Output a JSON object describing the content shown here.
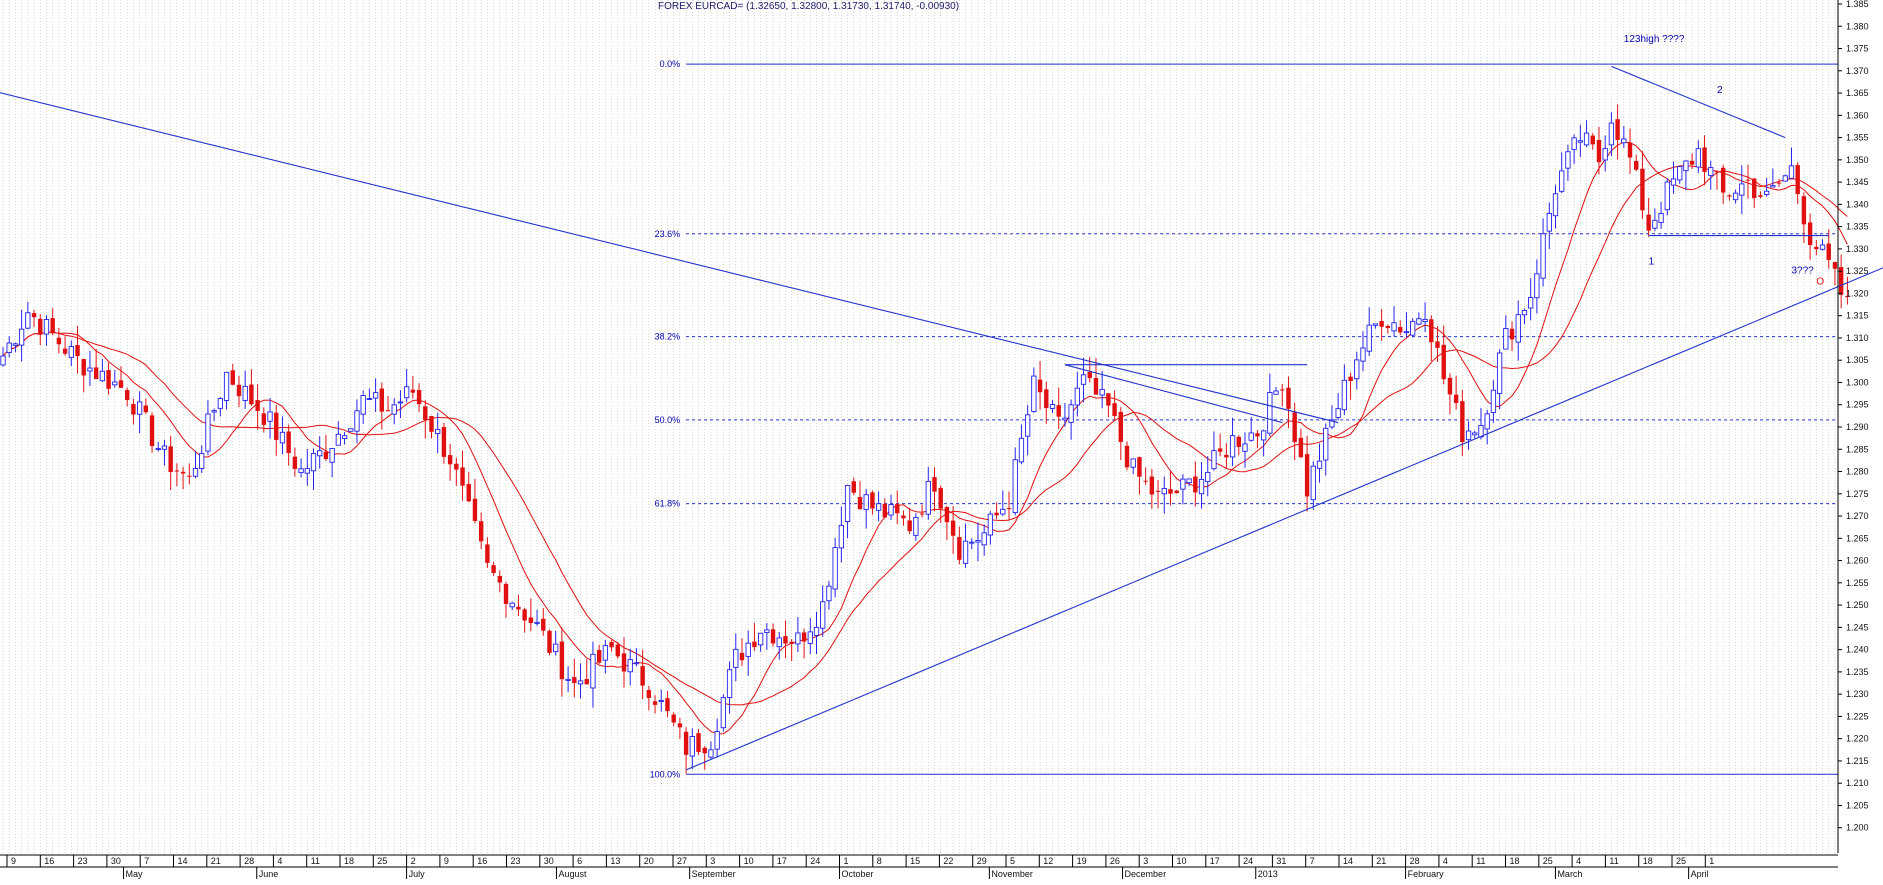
{
  "title": "FOREX EURCAD= (1.32650, 1.32800, 1.31730, 1.31740, -0.00930)",
  "colors": {
    "up": "#2222ee",
    "down": "#e01010",
    "ma": "#e01010",
    "trend": "#2233cc",
    "fib": "#2233cc",
    "grid": "#b8b8b8"
  },
  "chart_data": {
    "type": "candlestick",
    "title": "FOREX EURCAD= (1.32650, 1.32800, 1.31730, 1.31740, -0.00930)",
    "y_axis": {
      "position": "right",
      "range": [
        1.195,
        1.385
      ],
      "ticks": [
        "1.200",
        "1.205",
        "1.210",
        "1.215",
        "1.220",
        "1.225",
        "1.230",
        "1.235",
        "1.240",
        "1.245",
        "1.250",
        "1.255",
        "1.260",
        "1.265",
        "1.270",
        "1.275",
        "1.280",
        "1.285",
        "1.290",
        "1.295",
        "1.300",
        "1.305",
        "1.310",
        "1.315",
        "1.320",
        "1.325",
        "1.330",
        "1.335",
        "1.340",
        "1.345",
        "1.350",
        "1.355",
        "1.360",
        "1.365",
        "1.370",
        "1.375",
        "1.380",
        "1.385"
      ]
    },
    "x_axis": {
      "day_labels": [
        "9",
        "16",
        "23",
        "30",
        "7",
        "14",
        "21",
        "28",
        "4",
        "11",
        "18",
        "25",
        "2",
        "9",
        "16",
        "23",
        "30",
        "6",
        "13",
        "20",
        "27",
        "3",
        "10",
        "17",
        "24",
        "1",
        "8",
        "15",
        "22",
        "29",
        "5",
        "12",
        "19",
        "26",
        "3",
        "10",
        "17",
        "24",
        "31",
        "7",
        "14",
        "21",
        "28",
        "4",
        "11",
        "18",
        "25",
        "4",
        "11",
        "18",
        "25",
        "1"
      ],
      "months": [
        "May",
        "June",
        "July",
        "August",
        "September",
        "October",
        "November",
        "December",
        "2013",
        "February",
        "March",
        "April"
      ]
    },
    "anchors": [
      {
        "t": 0,
        "price": 1.306
      },
      {
        "t": 4,
        "price": 1.316
      },
      {
        "t": 12,
        "price": 1.305
      },
      {
        "t": 20,
        "price": 1.298
      },
      {
        "t": 26,
        "price": 1.283
      },
      {
        "t": 30,
        "price": 1.278
      },
      {
        "t": 36,
        "price": 1.302
      },
      {
        "t": 42,
        "price": 1.293
      },
      {
        "t": 48,
        "price": 1.28
      },
      {
        "t": 52,
        "price": 1.285
      },
      {
        "t": 58,
        "price": 1.296
      },
      {
        "t": 62,
        "price": 1.294
      },
      {
        "t": 66,
        "price": 1.298
      },
      {
        "t": 72,
        "price": 1.283
      },
      {
        "t": 78,
        "price": 1.258
      },
      {
        "t": 86,
        "price": 1.245
      },
      {
        "t": 92,
        "price": 1.232
      },
      {
        "t": 98,
        "price": 1.24
      },
      {
        "t": 104,
        "price": 1.232
      },
      {
        "t": 110,
        "price": 1.218
      },
      {
        "t": 114,
        "price": 1.22
      },
      {
        "t": 118,
        "price": 1.238
      },
      {
        "t": 122,
        "price": 1.245
      },
      {
        "t": 128,
        "price": 1.242
      },
      {
        "t": 132,
        "price": 1.25
      },
      {
        "t": 136,
        "price": 1.277
      },
      {
        "t": 140,
        "price": 1.272
      },
      {
        "t": 146,
        "price": 1.268
      },
      {
        "t": 150,
        "price": 1.278
      },
      {
        "t": 154,
        "price": 1.263
      },
      {
        "t": 158,
        "price": 1.266
      },
      {
        "t": 162,
        "price": 1.274
      },
      {
        "t": 166,
        "price": 1.299
      },
      {
        "t": 170,
        "price": 1.29
      },
      {
        "t": 174,
        "price": 1.3
      },
      {
        "t": 178,
        "price": 1.294
      },
      {
        "t": 182,
        "price": 1.28
      },
      {
        "t": 186,
        "price": 1.274
      },
      {
        "t": 190,
        "price": 1.276
      },
      {
        "t": 194,
        "price": 1.28
      },
      {
        "t": 198,
        "price": 1.287
      },
      {
        "t": 202,
        "price": 1.289
      },
      {
        "t": 206,
        "price": 1.301
      },
      {
        "t": 210,
        "price": 1.276
      },
      {
        "t": 214,
        "price": 1.291
      },
      {
        "t": 218,
        "price": 1.306
      },
      {
        "t": 222,
        "price": 1.315
      },
      {
        "t": 226,
        "price": 1.312
      },
      {
        "t": 229,
        "price": 1.317
      },
      {
        "t": 232,
        "price": 1.301
      },
      {
        "t": 235,
        "price": 1.289
      },
      {
        "t": 238,
        "price": 1.291
      },
      {
        "t": 242,
        "price": 1.31
      },
      {
        "t": 246,
        "price": 1.32
      },
      {
        "t": 250,
        "price": 1.344
      },
      {
        "t": 254,
        "price": 1.355
      },
      {
        "t": 257,
        "price": 1.35
      },
      {
        "t": 259,
        "price": 1.36
      },
      {
        "t": 262,
        "price": 1.35
      },
      {
        "t": 265,
        "price": 1.335
      },
      {
        "t": 269,
        "price": 1.345
      },
      {
        "t": 273,
        "price": 1.352
      },
      {
        "t": 277,
        "price": 1.342
      },
      {
        "t": 281,
        "price": 1.345
      },
      {
        "t": 284,
        "price": 1.341
      },
      {
        "t": 288,
        "price": 1.348
      },
      {
        "t": 291,
        "price": 1.333
      },
      {
        "t": 294,
        "price": 1.326
      },
      {
        "t": 297,
        "price": 1.317
      }
    ],
    "moving_averages": [
      {
        "period": 10
      },
      {
        "period": 20
      }
    ],
    "trendlines": [
      {
        "from": {
          "t": -9,
          "price": 1.368
        },
        "to": {
          "t": 215,
          "price": 1.291
        }
      },
      {
        "from": {
          "t": 110,
          "price": 1.213
        },
        "to": {
          "t": 310,
          "price": 1.33
        }
      },
      {
        "from": {
          "t": 171,
          "price": 1.304
        },
        "to": {
          "t": 210,
          "price": 1.304
        }
      },
      {
        "from": {
          "t": 171,
          "price": 1.304
        },
        "to": {
          "t": 206,
          "price": 1.291
        }
      },
      {
        "from": {
          "t": 259,
          "price": 1.371
        },
        "to": {
          "t": 287,
          "price": 1.355
        }
      },
      {
        "from": {
          "t": 265,
          "price": 1.333
        },
        "to": {
          "t": 294,
          "price": 1.333
        }
      }
    ],
    "fibonacci": {
      "x_start_t": 110,
      "x_end_t": 310,
      "levels": [
        {
          "label": "0.0%",
          "price": 1.3715
        },
        {
          "label": "23.6%",
          "price": 1.3334
        },
        {
          "label": "38.2%",
          "price": 1.3103
        },
        {
          "label": "50.0%",
          "price": 1.2916
        },
        {
          "label": "61.8%",
          "price": 1.2728
        },
        {
          "label": "100.0%",
          "price": 1.212
        }
      ]
    },
    "annotations": [
      {
        "text": "123high ????",
        "t": 261,
        "price": 1.3765
      },
      {
        "text": "2",
        "t": 276,
        "price": 1.365
      },
      {
        "text": "1",
        "t": 265,
        "price": 1.3265
      },
      {
        "text": "3???",
        "t": 288,
        "price": 1.3245
      },
      {
        "text": "O",
        "t": 292,
        "price": 1.322
      }
    ]
  }
}
